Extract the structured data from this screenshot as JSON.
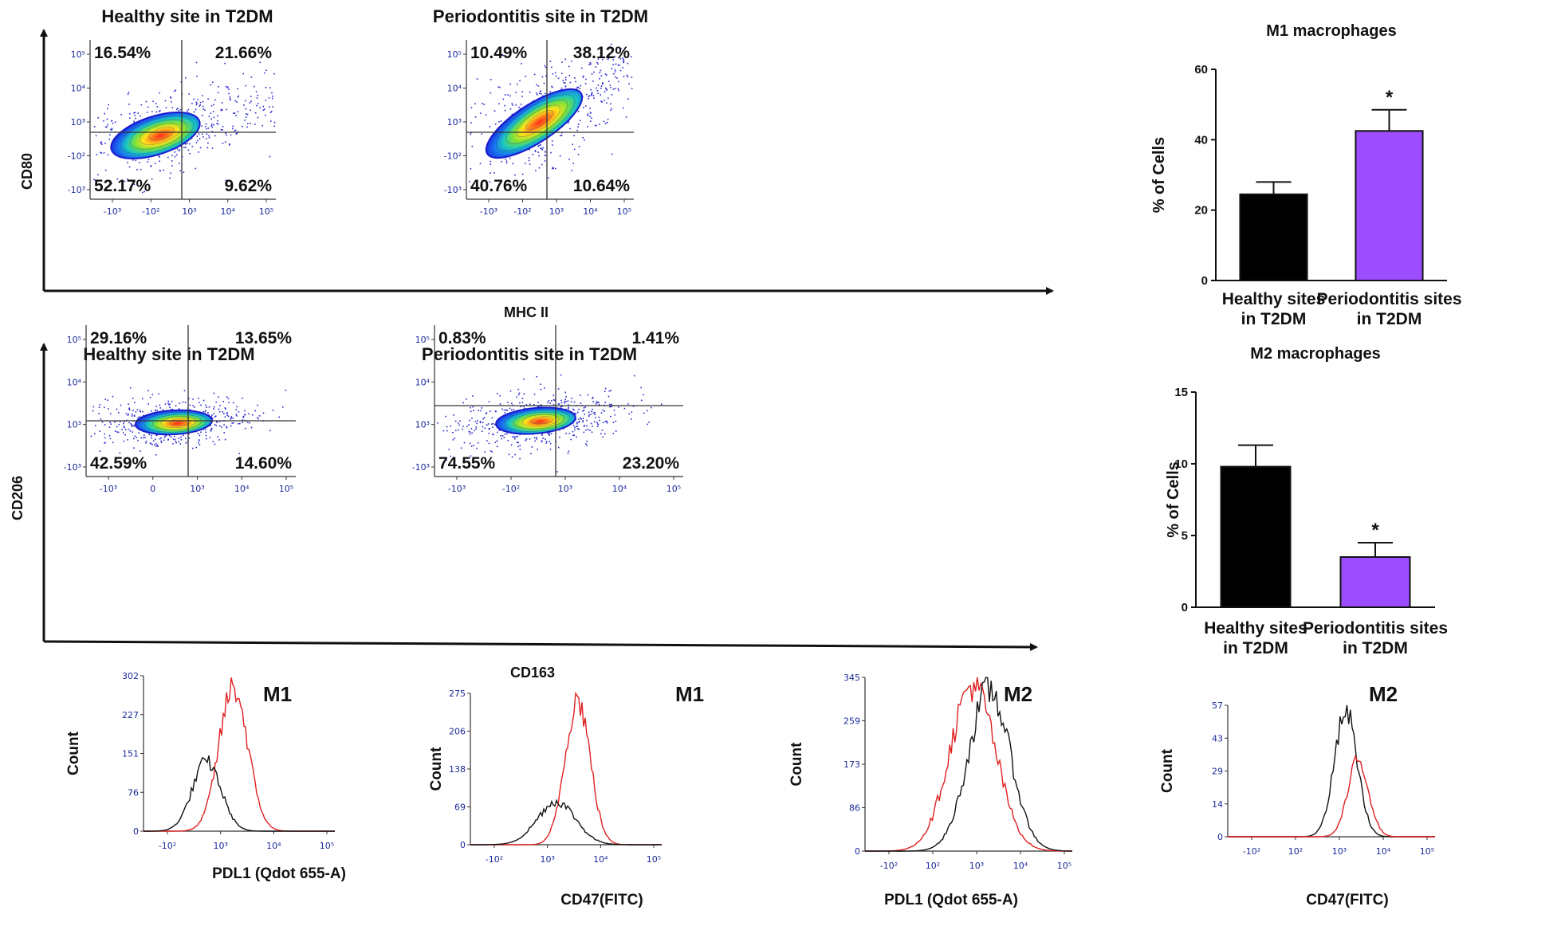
{
  "chart_data": [
    {
      "type": "scatter",
      "id": "m1_healthy",
      "title": "Healthy site in T2DM",
      "xlabel": "MHC II",
      "ylabel": "CD80",
      "quadrants": {
        "upper_left": "16.54%",
        "upper_right": "21.66%",
        "lower_left": "52.17%",
        "lower_right": "9.62%"
      },
      "x_ticks": [
        "-10³",
        "-10²",
        "10³",
        "10⁴",
        "10⁵"
      ],
      "y_ticks": [
        "10⁵",
        "10⁴",
        "10³",
        "-10²",
        "-10³"
      ]
    },
    {
      "type": "scatter",
      "id": "m1_perio",
      "title": "Periodontitis site in T2DM",
      "xlabel": "MHC II",
      "ylabel": "CD80",
      "quadrants": {
        "upper_left": "10.49%",
        "upper_right": "38.12%",
        "lower_left": "40.76%",
        "lower_right": "10.64%"
      },
      "x_ticks": [
        "-10³",
        "-10²",
        "10³",
        "10⁴",
        "10⁵"
      ],
      "y_ticks": [
        "10⁵",
        "10⁴",
        "10³",
        "-10²",
        "-10³"
      ]
    },
    {
      "type": "scatter",
      "id": "m2_healthy",
      "title": "Healthy site in T2DM",
      "xlabel": "CD163",
      "ylabel": "CD206",
      "quadrants": {
        "upper_left": "29.16%",
        "upper_right": "13.65%",
        "lower_left": "42.59%",
        "lower_right": "14.60%"
      },
      "x_ticks": [
        "-10³",
        "0",
        "10³",
        "10⁴",
        "10⁵"
      ],
      "y_ticks": [
        "10⁵",
        "10⁴",
        "10³",
        "-10³"
      ]
    },
    {
      "type": "scatter",
      "id": "m2_perio",
      "title": "Periodontitis site in T2DM",
      "xlabel": "CD163",
      "ylabel": "CD206",
      "quadrants": {
        "upper_left": "0.83%",
        "upper_right": "1.41%",
        "lower_left": "74.55%",
        "lower_right": "23.20%"
      },
      "x_ticks": [
        "-10³",
        "-10²",
        "10³",
        "10⁴",
        "10⁵"
      ],
      "y_ticks": [
        "10⁵",
        "10⁴",
        "10³",
        "-10³"
      ]
    },
    {
      "type": "bar",
      "id": "bar_m1",
      "title": "M1 macrophages",
      "ylabel": "% of Cells",
      "categories": [
        "Healthy sites in T2DM",
        "Periodontitis sites in T2DM"
      ],
      "category_lines": [
        [
          "Healthy sites",
          "in T2DM"
        ],
        [
          "Periodontitis sites",
          "in T2DM"
        ]
      ],
      "values": [
        24.5,
        42.5
      ],
      "errors": [
        3.5,
        6
      ],
      "colors": [
        "#000000",
        "#9b4dff"
      ],
      "significance": [
        "",
        "*"
      ],
      "ylim": [
        0,
        60
      ],
      "yticks": [
        0,
        20,
        40,
        60
      ]
    },
    {
      "type": "bar",
      "id": "bar_m2",
      "title": "M2 macrophages",
      "ylabel": "% of Cells",
      "categories": [
        "Healthy sites in T2DM",
        "Periodontitis sites in T2DM"
      ],
      "category_lines": [
        [
          "Healthy sites",
          "in T2DM"
        ],
        [
          "Periodontitis sites",
          "in T2DM"
        ]
      ],
      "values": [
        9.8,
        3.5
      ],
      "errors": [
        1.5,
        1.0
      ],
      "colors": [
        "#000000",
        "#9b4dff"
      ],
      "significance": [
        "",
        "*"
      ],
      "ylim": [
        0,
        15
      ],
      "yticks": [
        0,
        5,
        10,
        15
      ]
    },
    {
      "type": "line",
      "id": "hist_m1_pdl1",
      "label": "M1",
      "xlabel": "PDL1 (Qdot 655-A)",
      "ylabel": "Count",
      "ylim": [
        0,
        302
      ],
      "y_ticks": [
        "0",
        "76",
        "151",
        "227",
        "302"
      ],
      "x_ticks": [
        "-10²",
        "10³",
        "10⁴",
        "10⁵"
      ],
      "series": [
        {
          "name": "red",
          "color": "#e02020",
          "center": 0.47,
          "width": 0.075,
          "peak": 280
        },
        {
          "name": "black",
          "color": "#111111",
          "center": 0.33,
          "width": 0.075,
          "peak": 135
        }
      ]
    },
    {
      "type": "line",
      "id": "hist_m1_cd47",
      "label": "M1",
      "xlabel": "CD47(FITC)",
      "ylabel": "Count",
      "ylim": [
        0,
        275
      ],
      "y_ticks": [
        "0",
        "69",
        "138",
        "206",
        "275"
      ],
      "x_ticks": [
        "-10²",
        "10³",
        "10⁴",
        "10⁵"
      ],
      "series": [
        {
          "name": "red",
          "color": "#e02020",
          "center": 0.56,
          "width": 0.065,
          "peak": 265
        },
        {
          "name": "black",
          "color": "#111111",
          "center": 0.45,
          "width": 0.1,
          "peak": 78
        }
      ]
    },
    {
      "type": "line",
      "id": "hist_m2_pdl1",
      "label": "M2",
      "xlabel": "PDL1 (Qdot 655-A)",
      "ylabel": "Count",
      "ylim": [
        0,
        345
      ],
      "y_ticks": [
        "0",
        "86",
        "173",
        "259",
        "345"
      ],
      "x_ticks": [
        "-10²",
        "10²",
        "10³",
        "10⁴",
        "10⁵"
      ],
      "series": [
        {
          "name": "red",
          "color": "#e02020",
          "center": 0.52,
          "width": 0.11,
          "peak": 330
        },
        {
          "name": "black",
          "color": "#111111",
          "center": 0.6,
          "width": 0.1,
          "peak": 320
        }
      ]
    },
    {
      "type": "line",
      "id": "hist_m2_cd47",
      "label": "M2",
      "xlabel": "CD47(FITC)",
      "ylabel": "Count",
      "ylim": [
        0,
        57
      ],
      "y_ticks": [
        "0",
        "14",
        "29",
        "43",
        "57"
      ],
      "x_ticks": [
        "-10²",
        "10²",
        "10³",
        "10⁴",
        "10⁵"
      ],
      "series": [
        {
          "name": "black",
          "color": "#111111",
          "center": 0.57,
          "width": 0.055,
          "peak": 54
        },
        {
          "name": "red",
          "color": "#e02020",
          "center": 0.63,
          "width": 0.05,
          "peak": 33
        }
      ]
    }
  ]
}
